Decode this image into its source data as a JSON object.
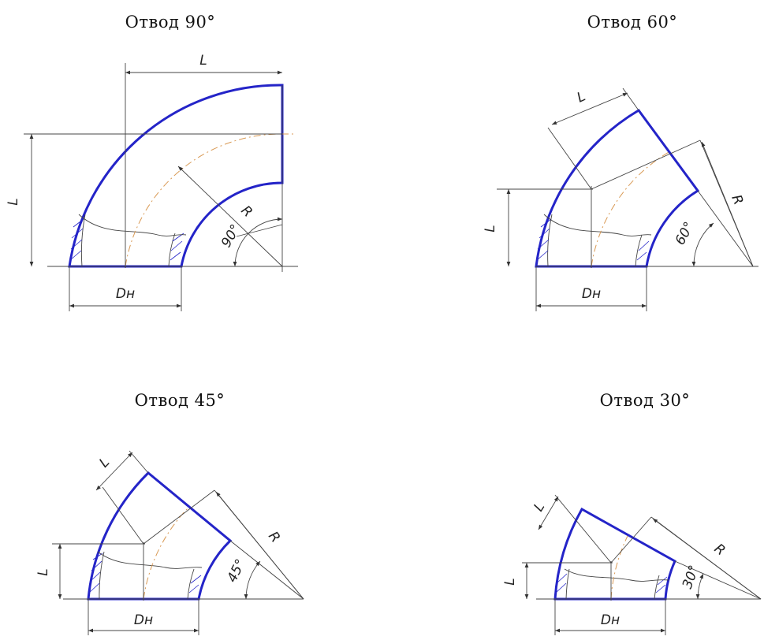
{
  "colors": {
    "outline": "#2424c8",
    "centerline": "#d99a55",
    "dimension": "#444444"
  },
  "drawings": [
    {
      "id": "90",
      "title": "Отвод 90°",
      "angle_label": "90°",
      "length_label": "L",
      "radius_label": "R",
      "diameter_label": "Dн"
    },
    {
      "id": "60",
      "title": "Отвод 60°",
      "angle_label": "60°",
      "length_label": "L",
      "radius_label": "R",
      "diameter_label": "Dн"
    },
    {
      "id": "45",
      "title": "Отвод 45°",
      "angle_label": "45°",
      "length_label": "L",
      "radius_label": "R",
      "diameter_label": "Dн"
    },
    {
      "id": "30",
      "title": "Отвод 30°",
      "angle_label": "30°",
      "length_label": "L",
      "radius_label": "R",
      "diameter_label": "Dн"
    }
  ]
}
